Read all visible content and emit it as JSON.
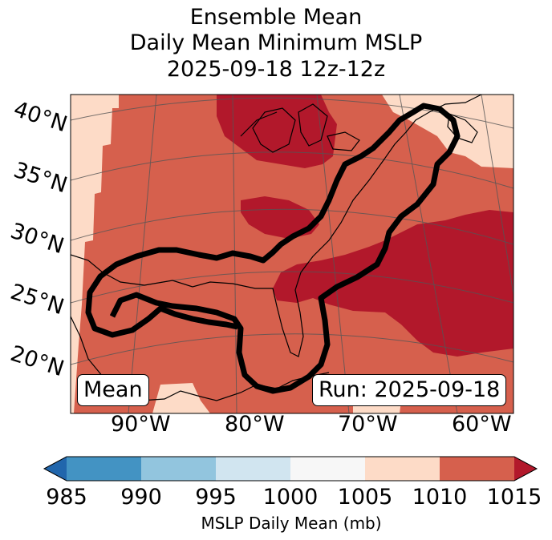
{
  "title": {
    "line1": "Ensemble Mean",
    "line2": "Daily Mean Minimum MSLP",
    "line3": "2025-09-18 12z-12z"
  },
  "map": {
    "lat_labels": [
      "40°N",
      "35°N",
      "30°N",
      "25°N",
      "20°N"
    ],
    "lon_labels": [
      "90°W",
      "80°W",
      "70°W",
      "60°W"
    ],
    "left_box": "Mean",
    "right_box": "Run: 2025-09-18",
    "fill_colors": {
      "p1000_1005": "#f7f7f7",
      "p1005_1010": "#fddbc7",
      "p1010_1015": "#d6604d",
      "p_above_1015": "#b2182b",
      "contour": "#000000"
    }
  },
  "colorbar": {
    "label": "MSLP Daily Mean (mb)",
    "ticks": [
      "985",
      "990",
      "995",
      "1000",
      "1005",
      "1010",
      "1015"
    ],
    "colors": [
      "#2166ac",
      "#4393c3",
      "#92c5de",
      "#d1e5f0",
      "#f7f7f7",
      "#fddbc7",
      "#d6604d",
      "#b2182b"
    ]
  }
}
